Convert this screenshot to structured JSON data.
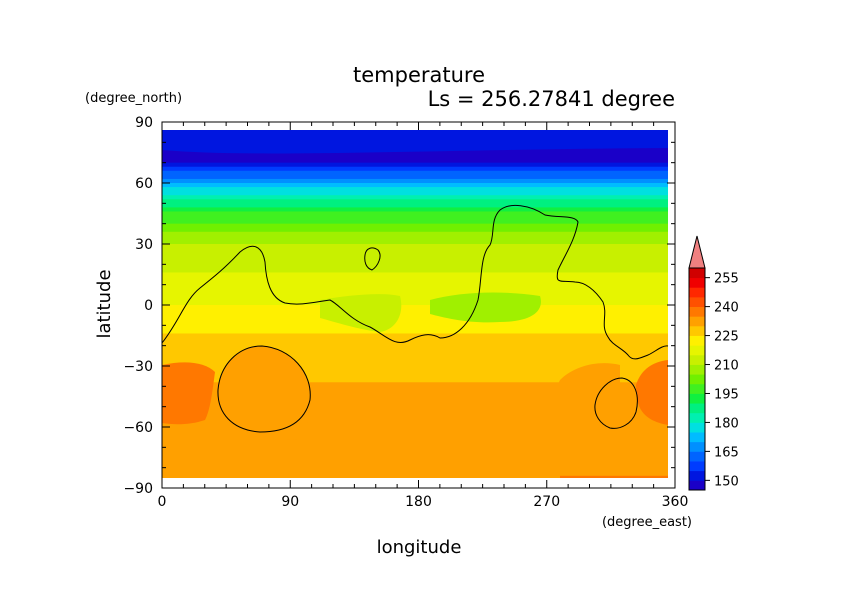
{
  "chart_data": {
    "type": "heatmap",
    "title": "temperature",
    "subtitle": "Ls = 256.27841 degree",
    "xlabel": "longitude",
    "ylabel": "latitude",
    "x_unit": "(degree_east)",
    "y_unit": "(degree_north)",
    "xlim": [
      0,
      360
    ],
    "ylim": [
      -90,
      90
    ],
    "x_ticks": [
      "0",
      "90",
      "180",
      "270",
      "360"
    ],
    "y_ticks": [
      "90",
      "60",
      "30",
      "0",
      "−30",
      "−60",
      "−90"
    ],
    "colorbar": {
      "levels": [
        145,
        150,
        155,
        160,
        165,
        170,
        175,
        180,
        185,
        190,
        195,
        200,
        205,
        210,
        215,
        220,
        225,
        230,
        235,
        240,
        245,
        250,
        255,
        260
      ],
      "labels": [
        "150",
        "165",
        "180",
        "195",
        "210",
        "225",
        "240",
        "255"
      ],
      "colors": [
        "#1a00c8",
        "#0016e0",
        "#003cff",
        "#0064ff",
        "#0090ff",
        "#00bcff",
        "#00e0e0",
        "#00f0b0",
        "#00f080",
        "#10f040",
        "#40f020",
        "#70f000",
        "#a0f000",
        "#c8f000",
        "#e6f500",
        "#fff000",
        "#ffc800",
        "#ffa000",
        "#ff7800",
        "#ff5000",
        "#ff2800",
        "#f00000",
        "#d00000",
        "#f08080"
      ]
    },
    "field_description_points": [
      {
        "lat": 85,
        "temp": 145
      },
      {
        "lat": 70,
        "temp": 150
      },
      {
        "lat": 60,
        "temp": 170
      },
      {
        "lat": 45,
        "temp": 195
      },
      {
        "lat": 30,
        "temp": 210
      },
      {
        "lat": 15,
        "temp": 215
      },
      {
        "lat": 0,
        "temp": 220
      },
      {
        "lat": -15,
        "temp": 225
      },
      {
        "lat": -30,
        "temp": 228
      },
      {
        "lat": -50,
        "temp": 233
      },
      {
        "lat": -85,
        "temp": 235
      }
    ]
  }
}
